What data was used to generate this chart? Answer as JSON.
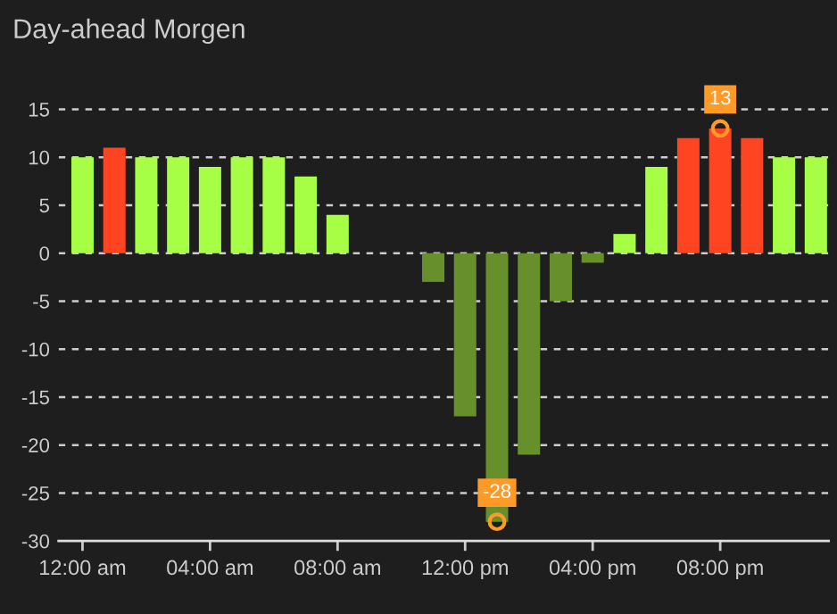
{
  "chart_data": {
    "type": "bar",
    "title": "Day-ahead Morgen",
    "x": [
      0,
      1,
      2,
      3,
      4,
      5,
      6,
      7,
      8,
      9,
      10,
      11,
      12,
      13,
      14,
      15,
      16,
      17,
      18,
      19,
      20,
      21,
      22,
      23
    ],
    "values": [
      10,
      11,
      10,
      10,
      9,
      10,
      10,
      8,
      4,
      null,
      null,
      -3,
      -17,
      -28,
      -21,
      -5,
      -1,
      2,
      9,
      12,
      13,
      12,
      10,
      10
    ],
    "colors": [
      "#a6ff44",
      "#ff4422",
      "#a6ff44",
      "#a6ff44",
      "#a6ff44",
      "#a6ff44",
      "#a6ff44",
      "#a6ff44",
      "#a6ff44",
      null,
      null,
      "#678f2c",
      "#678f2c",
      "#678f2c",
      "#678f2c",
      "#678f2c",
      "#678f2c",
      "#a6ff44",
      "#a6ff44",
      "#ff4422",
      "#ff4422",
      "#ff4422",
      "#a6ff44",
      "#a6ff44"
    ],
    "xlim": [
      -0.75,
      23.4
    ],
    "xticks": [
      {
        "value": 0,
        "label": "12:00 am"
      },
      {
        "value": 4,
        "label": "04:00 am"
      },
      {
        "value": 8,
        "label": "08:00 am"
      },
      {
        "value": 12,
        "label": "12:00 pm"
      },
      {
        "value": 16,
        "label": "04:00 pm"
      },
      {
        "value": 20,
        "label": "08:00 pm"
      }
    ],
    "ylim": [
      -30,
      18
    ],
    "yticks": [
      -30,
      -25,
      -20,
      -15,
      -10,
      -5,
      0,
      5,
      10,
      15
    ],
    "grid": "y",
    "annotations": [
      {
        "text": "13",
        "x": 20,
        "y": 13
      },
      {
        "text": "-28",
        "x": 13,
        "y": -28
      }
    ]
  }
}
